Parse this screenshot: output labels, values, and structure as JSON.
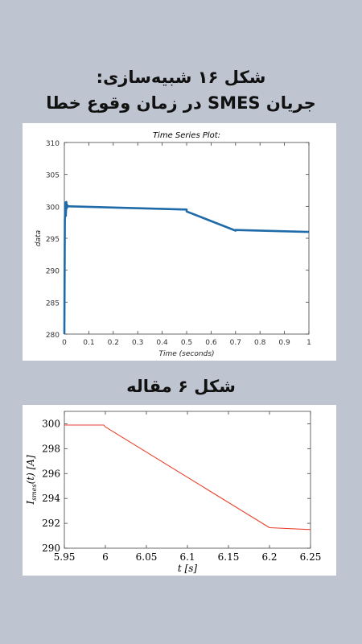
{
  "titles": {
    "line1": "شکل ۱۶ شبیه‌سازی:",
    "line2": "جریان SMES در زمان وقوع خطا",
    "line3": "شکل ۶ مقاله"
  },
  "colors": {
    "background": "#bfc5d0",
    "series1": "#1f6aa8",
    "series2": "#e8402a"
  },
  "chart_data": [
    {
      "type": "line",
      "title": "Time Series Plot:",
      "xlabel": "Time (seconds)",
      "ylabel": "data",
      "xlim": [
        0,
        1
      ],
      "ylim": [
        280,
        310
      ],
      "xticks": [
        "0",
        "0.1",
        "0.2",
        "0.3",
        "0.4",
        "0.5",
        "0.6",
        "0.7",
        "0.8",
        "0.9",
        "1"
      ],
      "yticks": [
        "280",
        "285",
        "290",
        "295",
        "300",
        "305",
        "310"
      ],
      "grid": false,
      "series": [
        {
          "x": [
            0,
            0.002,
            0.004,
            0.006,
            0.008,
            0.01,
            0.012,
            0.015,
            0.02,
            0.5,
            0.5,
            0.7,
            0.7,
            1.0
          ],
          "y": [
            280,
            297.8,
            300.6,
            298.5,
            300.7,
            299.7,
            300.2,
            300.0,
            300.0,
            299.5,
            299.2,
            296.2,
            296.3,
            296.0
          ]
        }
      ]
    },
    {
      "type": "line",
      "xlabel": "t [s]",
      "ylabel_main": "I",
      "ylabel_sub": "smes",
      "ylabel_rest": "(t) [A]",
      "xlim": [
        5.95,
        6.25
      ],
      "ylim": [
        290,
        301
      ],
      "xticks": [
        "5.95",
        "6",
        "6.05",
        "6.1",
        "6.15",
        "6.2",
        "6.25"
      ],
      "yticks": [
        "290",
        "292",
        "294",
        "296",
        "298",
        "300"
      ],
      "grid": false,
      "series": [
        {
          "x": [
            5.95,
            5.998,
            6.0,
            6.2,
            6.25
          ],
          "y": [
            299.9,
            299.9,
            299.75,
            291.65,
            291.5
          ]
        }
      ]
    }
  ]
}
